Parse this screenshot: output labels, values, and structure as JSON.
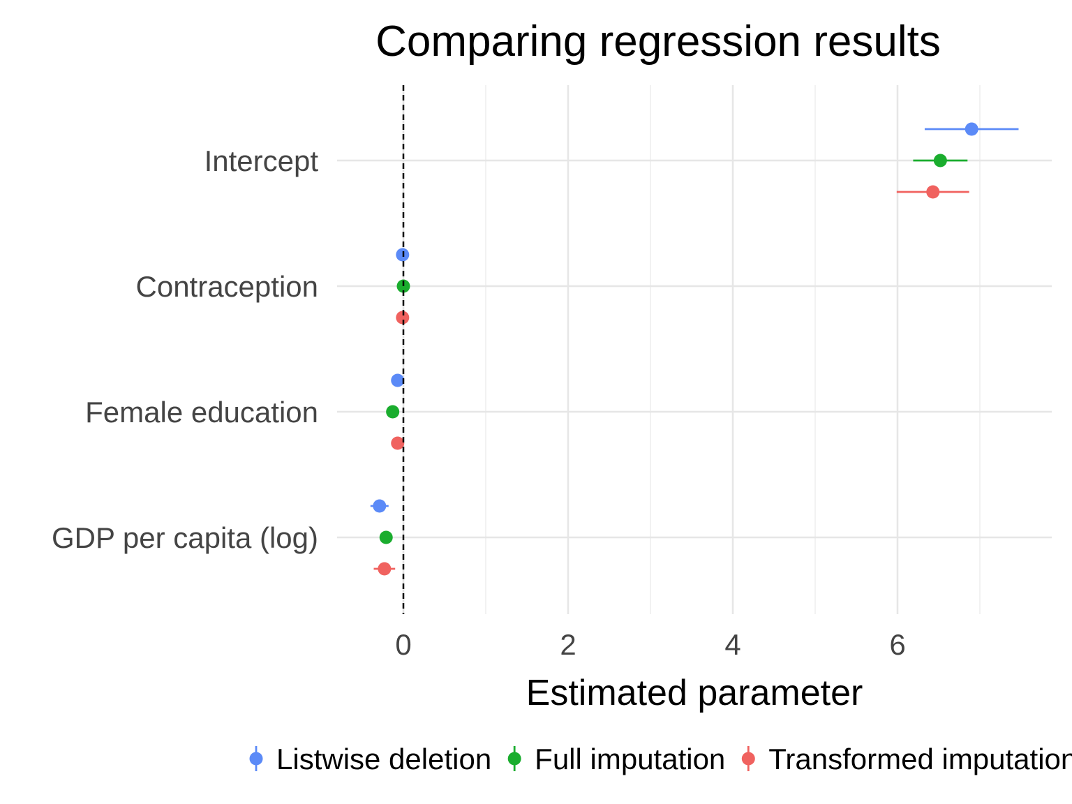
{
  "chart_data": {
    "type": "scatter",
    "subtype": "coefficient-plot-with-error-bars",
    "title": "Comparing regression results",
    "xlabel": "Estimated parameter",
    "ylabel": "",
    "xlim": [
      -0.8,
      7.85
    ],
    "x_ticks": [
      0,
      2,
      4,
      6
    ],
    "x_tick_labels": [
      "0",
      "2",
      "4",
      "6"
    ],
    "grid": true,
    "reference_line": {
      "x": 0,
      "style": "dashed"
    },
    "categories": [
      "Intercept",
      "Contraception",
      "Female education",
      "GDP per capita (log)"
    ],
    "legend_position": "bottom",
    "series": [
      {
        "name": "Listwise deletion",
        "color": "#5b8af7",
        "estimate": [
          6.9,
          -0.01,
          -0.07,
          -0.29
        ],
        "lower": [
          6.33,
          -0.02,
          -0.09,
          -0.4
        ],
        "upper": [
          7.47,
          0.0,
          -0.05,
          -0.18
        ]
      },
      {
        "name": "Full imputation",
        "color": "#1aad2e",
        "estimate": [
          6.52,
          0.0,
          -0.13,
          -0.21
        ],
        "lower": [
          6.19,
          -0.01,
          -0.15,
          -0.26
        ],
        "upper": [
          6.85,
          0.01,
          -0.11,
          -0.16
        ]
      },
      {
        "name": "Transformed imputation",
        "color": "#f0625f",
        "estimate": [
          6.43,
          -0.01,
          -0.07,
          -0.23
        ],
        "lower": [
          5.99,
          -0.02,
          -0.11,
          -0.36
        ],
        "upper": [
          6.87,
          0.0,
          -0.03,
          -0.1
        ]
      }
    ]
  }
}
